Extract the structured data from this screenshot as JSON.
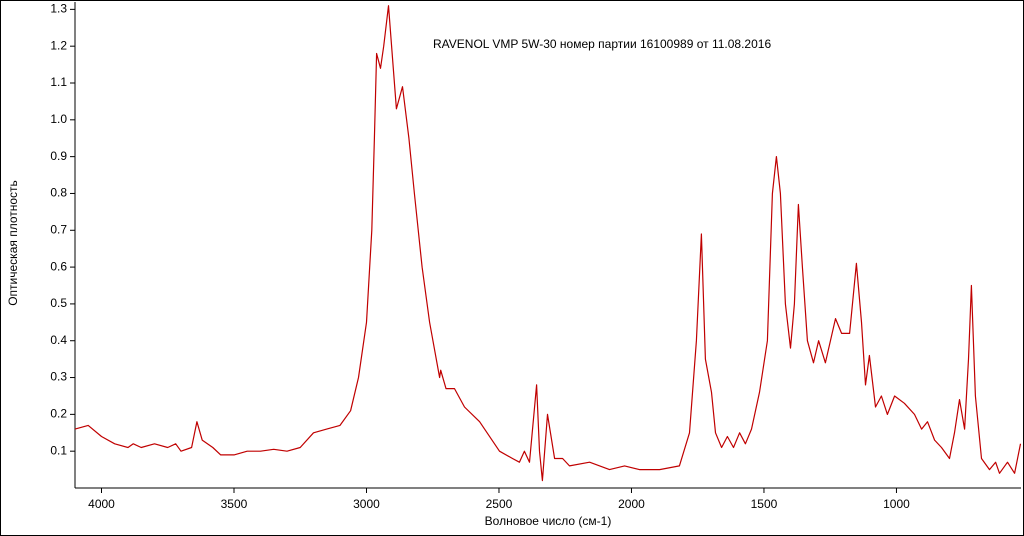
{
  "chart_data": {
    "type": "line",
    "title": "RAVENOL VMP 5W-30 номер партии 16100989 от 11.08.2016",
    "x_label": "Волновое число (см-1)",
    "y_label": "Оптическая плотность",
    "color": "#c00000",
    "xlim": [
      4100,
      530
    ],
    "ylim": [
      0,
      1.32
    ],
    "xticks": [
      4000,
      3500,
      3000,
      2500,
      2000,
      1500,
      1000
    ],
    "yticks": [
      0.1,
      0.2,
      0.3,
      0.4,
      0.5,
      0.6,
      0.7,
      0.8,
      0.9,
      {
        "value": 1,
        "label": "1.0"
      },
      1.1,
      1.2,
      1.3
    ],
    "x": [
      4100,
      4050,
      4000,
      3950,
      3900,
      3880,
      3850,
      3800,
      3750,
      3720,
      3700,
      3660,
      3640,
      3620,
      3580,
      3550,
      3500,
      3450,
      3400,
      3350,
      3300,
      3250,
      3200,
      3150,
      3100,
      3060,
      3030,
      3000,
      2980,
      2970,
      2962,
      2947,
      2935,
      2917,
      2900,
      2887,
      2864,
      2840,
      2819,
      2790,
      2762,
      2724,
      2720,
      2700,
      2668,
      2630,
      2573,
      2498,
      2449,
      2423,
      2404,
      2385,
      2358,
      2347,
      2336,
      2317,
      2290,
      2260,
      2234,
      2158,
      2083,
      2026,
      1970,
      1894,
      1819,
      1781,
      1755,
      1736,
      1721,
      1698,
      1683,
      1660,
      1638,
      1615,
      1592,
      1570,
      1547,
      1517,
      1487,
      1468,
      1453,
      1438,
      1419,
      1400,
      1385,
      1370,
      1355,
      1336,
      1313,
      1294,
      1268,
      1230,
      1207,
      1177,
      1151,
      1132,
      1117,
      1102,
      1079,
      1057,
      1034,
      1007,
      970,
      932,
      905,
      883,
      856,
      830,
      800,
      781,
      762,
      743,
      728,
      717,
      702,
      679,
      649,
      626,
      611,
      581,
      554,
      532
    ],
    "values": [
      0.16,
      0.17,
      0.14,
      0.12,
      0.11,
      0.12,
      0.11,
      0.12,
      0.11,
      0.12,
      0.1,
      0.11,
      0.18,
      0.13,
      0.11,
      0.09,
      0.09,
      0.1,
      0.1,
      0.105,
      0.1,
      0.11,
      0.15,
      0.16,
      0.17,
      0.21,
      0.3,
      0.45,
      0.7,
      0.95,
      1.18,
      1.14,
      1.2,
      1.31,
      1.15,
      1.03,
      1.09,
      0.95,
      0.8,
      0.6,
      0.45,
      0.3,
      0.32,
      0.27,
      0.27,
      0.22,
      0.18,
      0.1,
      0.08,
      0.07,
      0.1,
      0.07,
      0.28,
      0.1,
      0.02,
      0.2,
      0.08,
      0.08,
      0.06,
      0.07,
      0.05,
      0.06,
      0.05,
      0.05,
      0.06,
      0.15,
      0.4,
      0.69,
      0.35,
      0.26,
      0.15,
      0.11,
      0.14,
      0.11,
      0.15,
      0.12,
      0.16,
      0.26,
      0.4,
      0.8,
      0.9,
      0.8,
      0.5,
      0.38,
      0.5,
      0.77,
      0.6,
      0.4,
      0.34,
      0.4,
      0.34,
      0.46,
      0.42,
      0.42,
      0.61,
      0.45,
      0.28,
      0.36,
      0.22,
      0.25,
      0.2,
      0.25,
      0.23,
      0.2,
      0.16,
      0.18,
      0.13,
      0.11,
      0.08,
      0.15,
      0.24,
      0.16,
      0.35,
      0.55,
      0.25,
      0.08,
      0.05,
      0.07,
      0.04,
      0.07,
      0.04,
      0.12
    ]
  }
}
